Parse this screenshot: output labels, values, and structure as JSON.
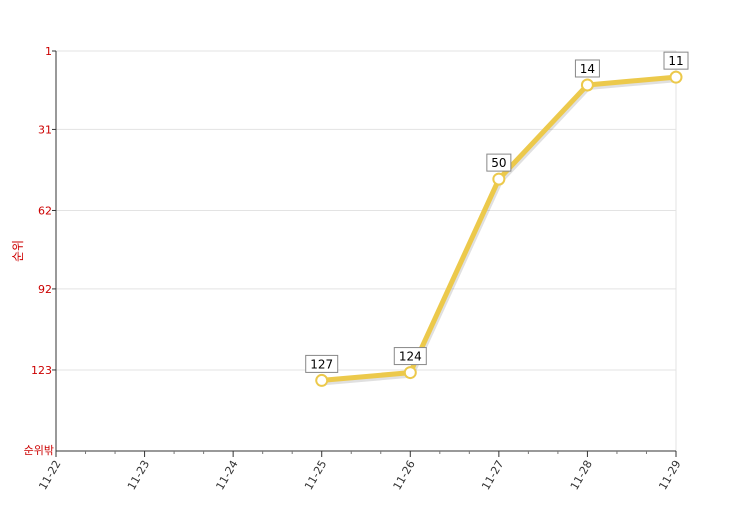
{
  "chart_data": {
    "type": "line",
    "ylabel": "순위",
    "y_reversed": true,
    "ylim": [
      1,
      154
    ],
    "y_ticks": [
      1,
      31,
      62,
      92,
      123
    ],
    "y_bottom_label": "순위밖",
    "categories": [
      "11-22",
      "11-23",
      "11-24",
      "11-25",
      "11-26",
      "11-27",
      "11-28",
      "11-29"
    ],
    "series": [
      {
        "values": [
          null,
          null,
          null,
          127,
          124,
          50,
          14,
          11
        ]
      }
    ],
    "data_labels": [
      "",
      "",
      "",
      "127",
      "124",
      "50",
      "14",
      "11"
    ],
    "line_color": "#ecc94b",
    "tick_color": "#cc0000",
    "grid": true,
    "legend": "none"
  }
}
